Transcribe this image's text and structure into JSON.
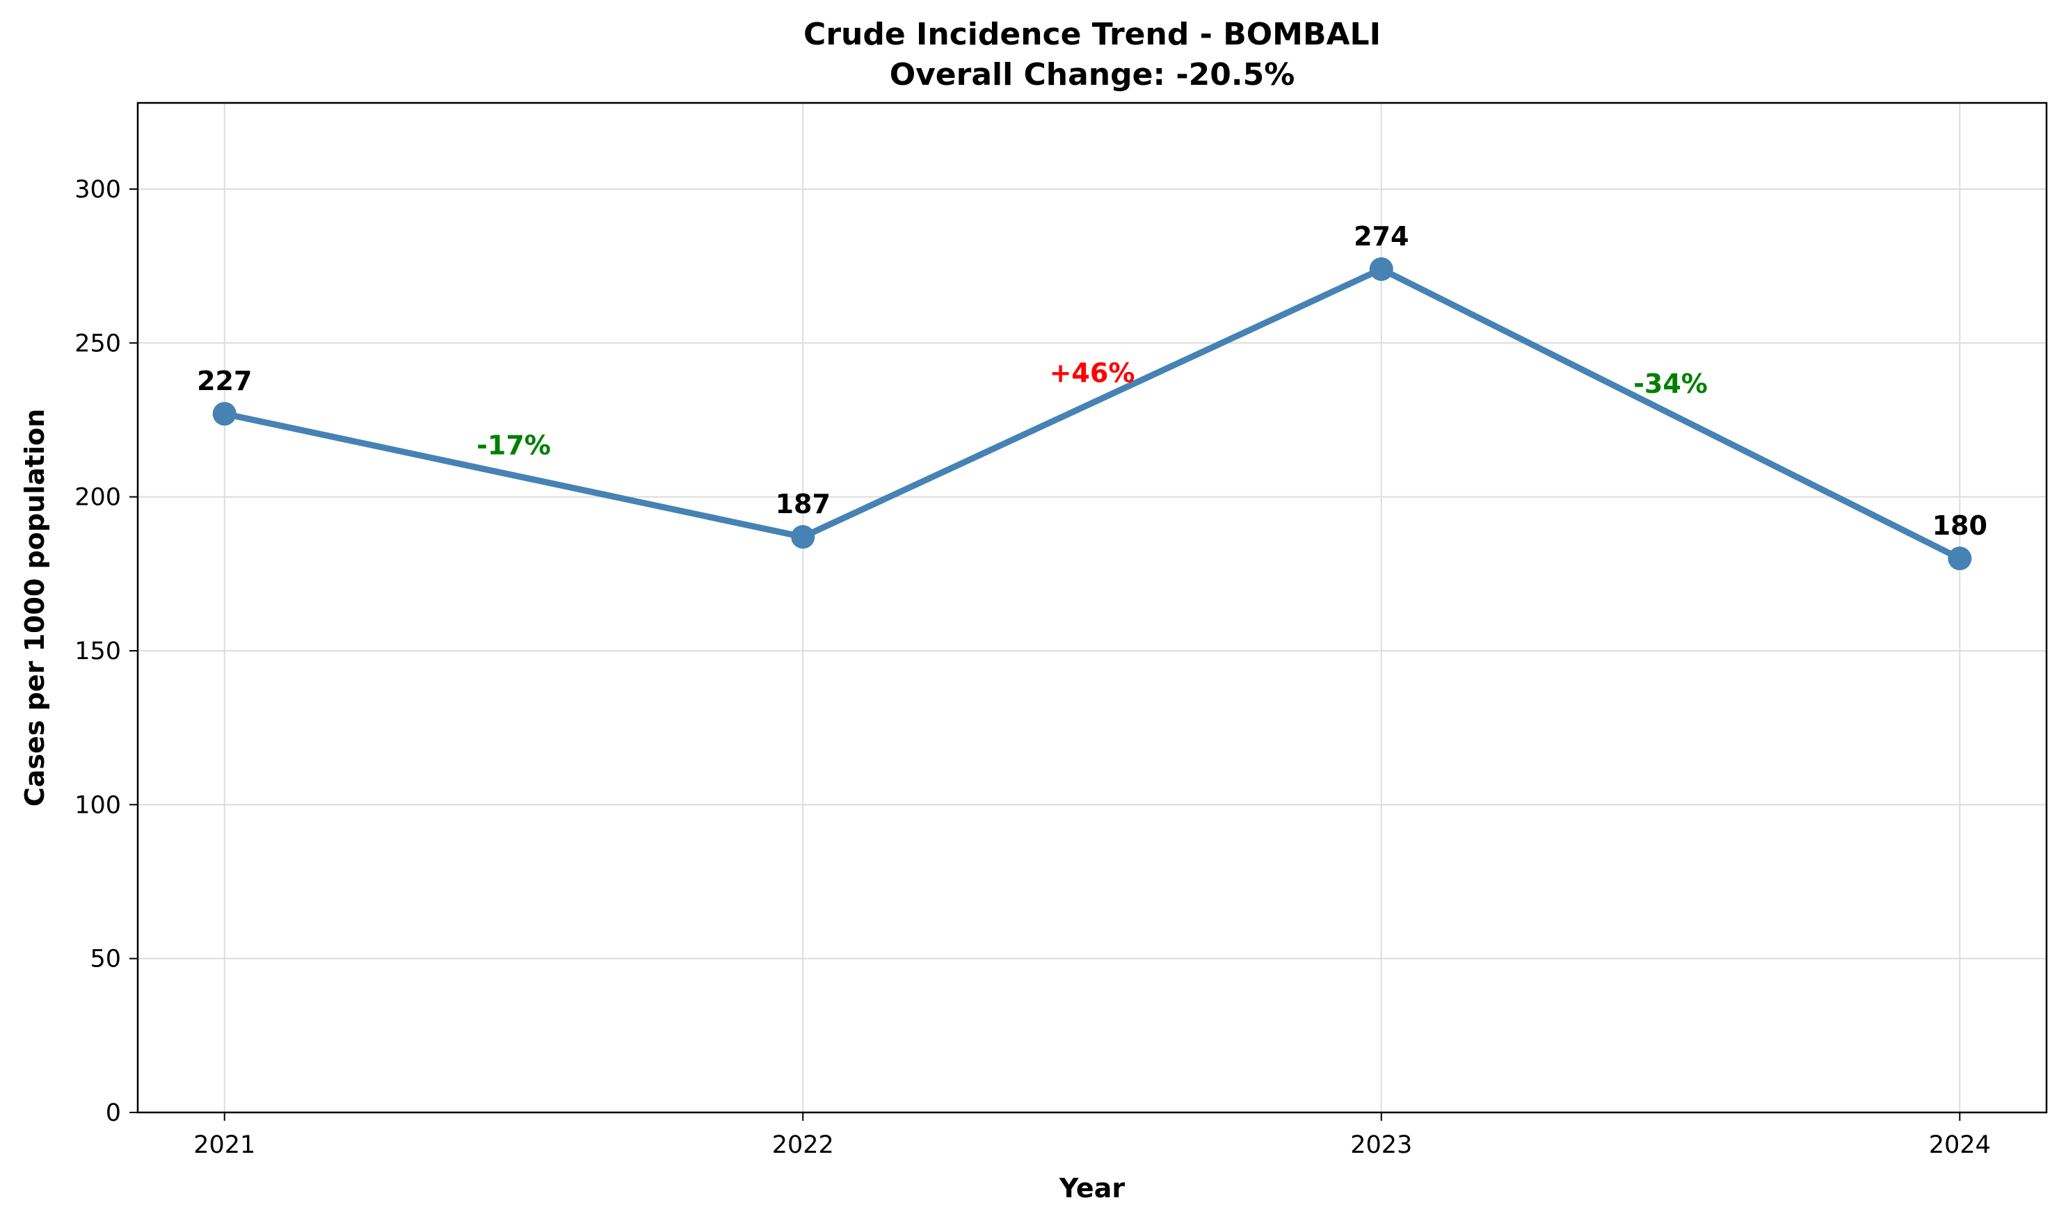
{
  "chart_data": {
    "type": "line",
    "title": "Crude Incidence Trend - BOMBALI",
    "subtitle": "Overall Change: -20.5%",
    "xlabel": "Year",
    "ylabel": "Cases per 1000 population",
    "categories": [
      "2021",
      "2022",
      "2023",
      "2024"
    ],
    "x": [
      2021,
      2022,
      2023,
      2024
    ],
    "series": [
      {
        "name": "Crude Incidence",
        "values": [
          227,
          187,
          274,
          180
        ],
        "color": "#4682b4"
      }
    ],
    "data_labels": [
      "227",
      "187",
      "274",
      "180"
    ],
    "annotations": [
      {
        "text": "-17%",
        "color": "#008000"
      },
      {
        "text": "+46%",
        "color": "#ff0000"
      },
      {
        "text": "-34%",
        "color": "#008000"
      }
    ],
    "xlim": [
      2020.85,
      2024.15
    ],
    "ylim": [
      0,
      328
    ],
    "yticks": [
      0,
      50,
      100,
      150,
      200,
      250,
      300
    ],
    "ytick_labels": [
      "0",
      "50",
      "100",
      "150",
      "200",
      "250",
      "300"
    ],
    "grid": true,
    "legend": "none"
  }
}
